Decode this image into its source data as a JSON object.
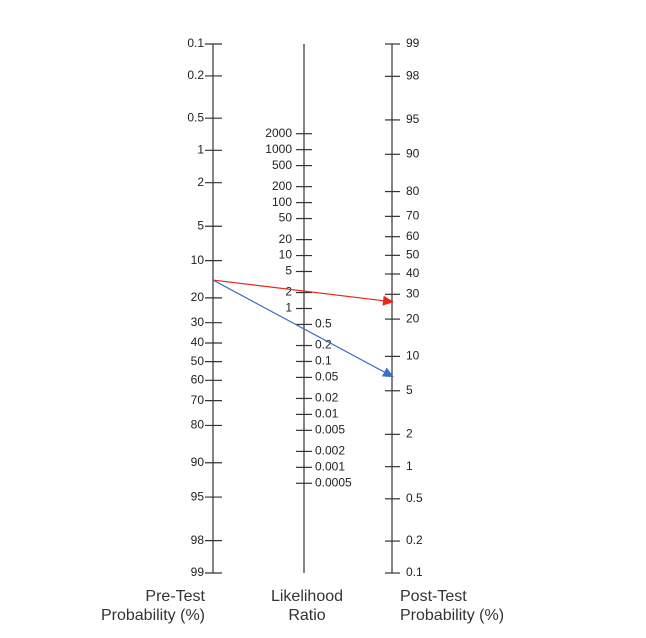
{
  "nomogram": {
    "axes": [
      {
        "title_lines": [
          "Pre-Test",
          "Probability (%)"
        ],
        "scale": "logit",
        "ticks": [
          0.1,
          0.2,
          0.5,
          1,
          2,
          5,
          10,
          20,
          30,
          40,
          50,
          60,
          70,
          80,
          90,
          95,
          98,
          99
        ]
      },
      {
        "title_lines": [
          "Likelihood",
          "Ratio"
        ],
        "scale": "log",
        "ticks": [
          2000,
          1000,
          500,
          200,
          100,
          50,
          20,
          10,
          5,
          2,
          1,
          0.5,
          0.2,
          0.1,
          0.05,
          0.02,
          0.01,
          0.005,
          0.002,
          0.001,
          0.0005
        ]
      },
      {
        "title_lines": [
          "Post-Test",
          "Probability (%)"
        ],
        "scale": "logit-reversed",
        "ticks": [
          99,
          98,
          95,
          90,
          80,
          70,
          60,
          50,
          40,
          30,
          20,
          10,
          5,
          2,
          1,
          0.5,
          0.2,
          0.1
        ]
      }
    ],
    "arrows": [
      {
        "pre_test": 14.5,
        "post_test": 26.6,
        "color": "#e8261c"
      },
      {
        "pre_test": 14.5,
        "post_test": 6.6,
        "color": "#3b6fc6"
      }
    ]
  }
}
